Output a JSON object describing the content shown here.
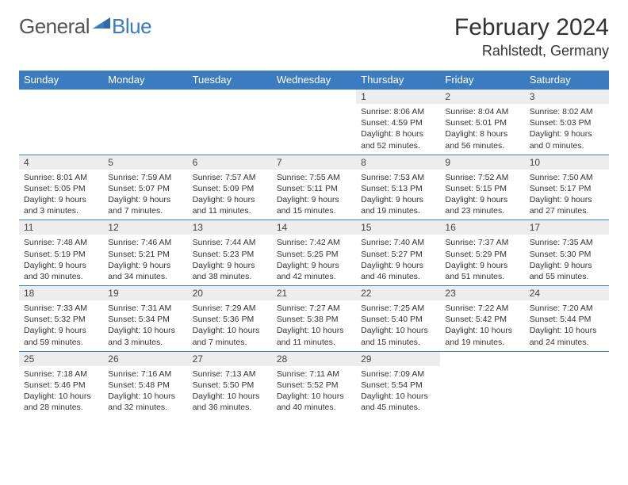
{
  "logo": {
    "text1": "General",
    "text2": "Blue"
  },
  "header": {
    "title": "February 2024",
    "location": "Rahlstedt, Germany"
  },
  "colors": {
    "accent": "#3b7bbf",
    "daynum_bg": "#ededed",
    "text": "#333333",
    "bg": "#ffffff"
  },
  "weekdays": [
    "Sunday",
    "Monday",
    "Tuesday",
    "Wednesday",
    "Thursday",
    "Friday",
    "Saturday"
  ],
  "weeks": [
    [
      {
        "empty": true
      },
      {
        "empty": true
      },
      {
        "empty": true
      },
      {
        "empty": true
      },
      {
        "n": "1",
        "sr": "Sunrise: 8:06 AM",
        "ss": "Sunset: 4:59 PM",
        "dl1": "Daylight: 8 hours",
        "dl2": "and 52 minutes."
      },
      {
        "n": "2",
        "sr": "Sunrise: 8:04 AM",
        "ss": "Sunset: 5:01 PM",
        "dl1": "Daylight: 8 hours",
        "dl2": "and 56 minutes."
      },
      {
        "n": "3",
        "sr": "Sunrise: 8:02 AM",
        "ss": "Sunset: 5:03 PM",
        "dl1": "Daylight: 9 hours",
        "dl2": "and 0 minutes."
      }
    ],
    [
      {
        "n": "4",
        "sr": "Sunrise: 8:01 AM",
        "ss": "Sunset: 5:05 PM",
        "dl1": "Daylight: 9 hours",
        "dl2": "and 3 minutes."
      },
      {
        "n": "5",
        "sr": "Sunrise: 7:59 AM",
        "ss": "Sunset: 5:07 PM",
        "dl1": "Daylight: 9 hours",
        "dl2": "and 7 minutes."
      },
      {
        "n": "6",
        "sr": "Sunrise: 7:57 AM",
        "ss": "Sunset: 5:09 PM",
        "dl1": "Daylight: 9 hours",
        "dl2": "and 11 minutes."
      },
      {
        "n": "7",
        "sr": "Sunrise: 7:55 AM",
        "ss": "Sunset: 5:11 PM",
        "dl1": "Daylight: 9 hours",
        "dl2": "and 15 minutes."
      },
      {
        "n": "8",
        "sr": "Sunrise: 7:53 AM",
        "ss": "Sunset: 5:13 PM",
        "dl1": "Daylight: 9 hours",
        "dl2": "and 19 minutes."
      },
      {
        "n": "9",
        "sr": "Sunrise: 7:52 AM",
        "ss": "Sunset: 5:15 PM",
        "dl1": "Daylight: 9 hours",
        "dl2": "and 23 minutes."
      },
      {
        "n": "10",
        "sr": "Sunrise: 7:50 AM",
        "ss": "Sunset: 5:17 PM",
        "dl1": "Daylight: 9 hours",
        "dl2": "and 27 minutes."
      }
    ],
    [
      {
        "n": "11",
        "sr": "Sunrise: 7:48 AM",
        "ss": "Sunset: 5:19 PM",
        "dl1": "Daylight: 9 hours",
        "dl2": "and 30 minutes."
      },
      {
        "n": "12",
        "sr": "Sunrise: 7:46 AM",
        "ss": "Sunset: 5:21 PM",
        "dl1": "Daylight: 9 hours",
        "dl2": "and 34 minutes."
      },
      {
        "n": "13",
        "sr": "Sunrise: 7:44 AM",
        "ss": "Sunset: 5:23 PM",
        "dl1": "Daylight: 9 hours",
        "dl2": "and 38 minutes."
      },
      {
        "n": "14",
        "sr": "Sunrise: 7:42 AM",
        "ss": "Sunset: 5:25 PM",
        "dl1": "Daylight: 9 hours",
        "dl2": "and 42 minutes."
      },
      {
        "n": "15",
        "sr": "Sunrise: 7:40 AM",
        "ss": "Sunset: 5:27 PM",
        "dl1": "Daylight: 9 hours",
        "dl2": "and 46 minutes."
      },
      {
        "n": "16",
        "sr": "Sunrise: 7:37 AM",
        "ss": "Sunset: 5:29 PM",
        "dl1": "Daylight: 9 hours",
        "dl2": "and 51 minutes."
      },
      {
        "n": "17",
        "sr": "Sunrise: 7:35 AM",
        "ss": "Sunset: 5:30 PM",
        "dl1": "Daylight: 9 hours",
        "dl2": "and 55 minutes."
      }
    ],
    [
      {
        "n": "18",
        "sr": "Sunrise: 7:33 AM",
        "ss": "Sunset: 5:32 PM",
        "dl1": "Daylight: 9 hours",
        "dl2": "and 59 minutes."
      },
      {
        "n": "19",
        "sr": "Sunrise: 7:31 AM",
        "ss": "Sunset: 5:34 PM",
        "dl1": "Daylight: 10 hours",
        "dl2": "and 3 minutes."
      },
      {
        "n": "20",
        "sr": "Sunrise: 7:29 AM",
        "ss": "Sunset: 5:36 PM",
        "dl1": "Daylight: 10 hours",
        "dl2": "and 7 minutes."
      },
      {
        "n": "21",
        "sr": "Sunrise: 7:27 AM",
        "ss": "Sunset: 5:38 PM",
        "dl1": "Daylight: 10 hours",
        "dl2": "and 11 minutes."
      },
      {
        "n": "22",
        "sr": "Sunrise: 7:25 AM",
        "ss": "Sunset: 5:40 PM",
        "dl1": "Daylight: 10 hours",
        "dl2": "and 15 minutes."
      },
      {
        "n": "23",
        "sr": "Sunrise: 7:22 AM",
        "ss": "Sunset: 5:42 PM",
        "dl1": "Daylight: 10 hours",
        "dl2": "and 19 minutes."
      },
      {
        "n": "24",
        "sr": "Sunrise: 7:20 AM",
        "ss": "Sunset: 5:44 PM",
        "dl1": "Daylight: 10 hours",
        "dl2": "and 24 minutes."
      }
    ],
    [
      {
        "n": "25",
        "sr": "Sunrise: 7:18 AM",
        "ss": "Sunset: 5:46 PM",
        "dl1": "Daylight: 10 hours",
        "dl2": "and 28 minutes."
      },
      {
        "n": "26",
        "sr": "Sunrise: 7:16 AM",
        "ss": "Sunset: 5:48 PM",
        "dl1": "Daylight: 10 hours",
        "dl2": "and 32 minutes."
      },
      {
        "n": "27",
        "sr": "Sunrise: 7:13 AM",
        "ss": "Sunset: 5:50 PM",
        "dl1": "Daylight: 10 hours",
        "dl2": "and 36 minutes."
      },
      {
        "n": "28",
        "sr": "Sunrise: 7:11 AM",
        "ss": "Sunset: 5:52 PM",
        "dl1": "Daylight: 10 hours",
        "dl2": "and 40 minutes."
      },
      {
        "n": "29",
        "sr": "Sunrise: 7:09 AM",
        "ss": "Sunset: 5:54 PM",
        "dl1": "Daylight: 10 hours",
        "dl2": "and 45 minutes."
      },
      {
        "empty": true
      },
      {
        "empty": true
      }
    ]
  ]
}
